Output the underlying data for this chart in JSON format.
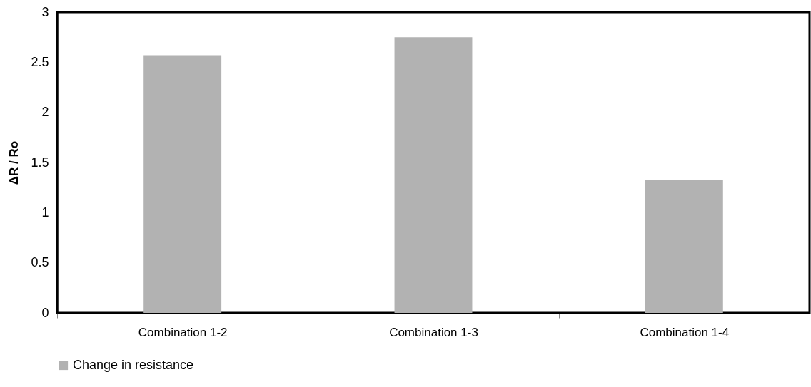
{
  "chart_data": {
    "type": "bar",
    "ylabel": "ΔR / Ro",
    "categories": [
      "Combination 1-2",
      "Combination 1-3",
      "Combination 1-4"
    ],
    "series": [
      {
        "name": "Change in resistance",
        "color": "#b2b2b2",
        "values": [
          2.57,
          2.75,
          1.33
        ]
      }
    ],
    "ylim": [
      0,
      3
    ],
    "yticks": [
      0,
      0.5,
      1,
      1.5,
      2,
      2.5,
      3
    ],
    "grid": false,
    "legend": "bottom"
  }
}
